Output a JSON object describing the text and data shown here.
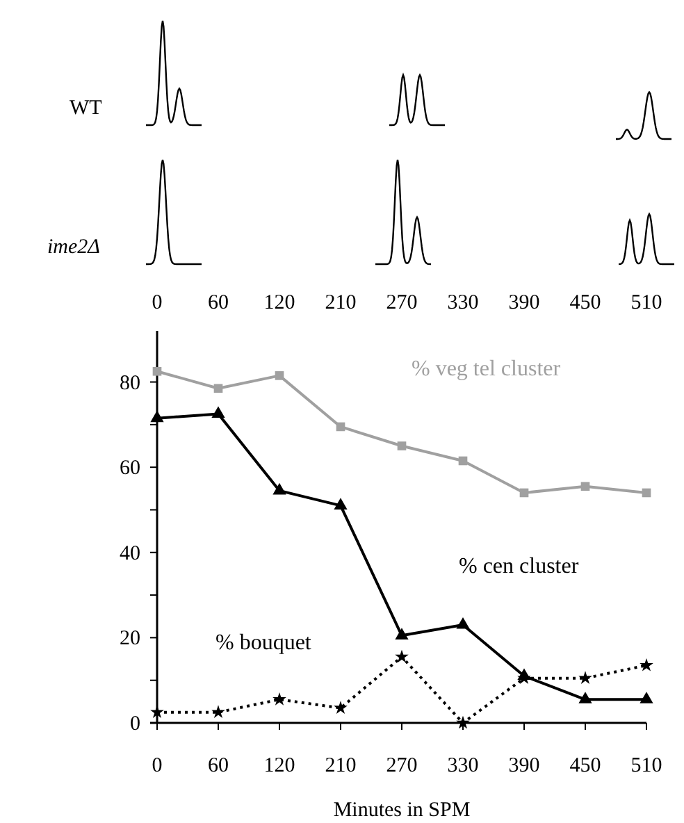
{
  "chart_data": {
    "type": "line",
    "xlabel": "Minutes  in SPM",
    "categories": [
      "0",
      "60",
      "120",
      "210",
      "270",
      "330",
      "390",
      "450",
      "510"
    ],
    "series": [
      {
        "name": "%  veg tel cluster",
        "color": "#a0a0a0",
        "marker": "square",
        "line_style": "solid",
        "values": [
          82.5,
          78.5,
          81.5,
          69.5,
          65,
          61.5,
          54,
          55.5,
          54
        ]
      },
      {
        "name": "%  cen cluster",
        "color": "#000000",
        "marker": "triangle",
        "line_style": "solid",
        "values": [
          71.5,
          72.5,
          54.5,
          51,
          20.5,
          23,
          11,
          5.5,
          5.5
        ]
      },
      {
        "name": "%  bouquet",
        "color": "#000000",
        "marker": "star",
        "line_style": "dotted",
        "values": [
          2.5,
          2.5,
          5.5,
          3.5,
          15.5,
          0,
          10.5,
          10.5,
          13.5
        ]
      }
    ],
    "ylim": [
      0,
      92
    ],
    "yticks": [
      0,
      {
        "value": 10,
        "label": null
      },
      20,
      {
        "value": 30,
        "label": null
      },
      40,
      {
        "value": 50,
        "label": null
      },
      60,
      {
        "value": 70,
        "label": null
      },
      80
    ],
    "annotations": [
      "WT",
      "ime2Δ"
    ],
    "grid": false
  }
}
